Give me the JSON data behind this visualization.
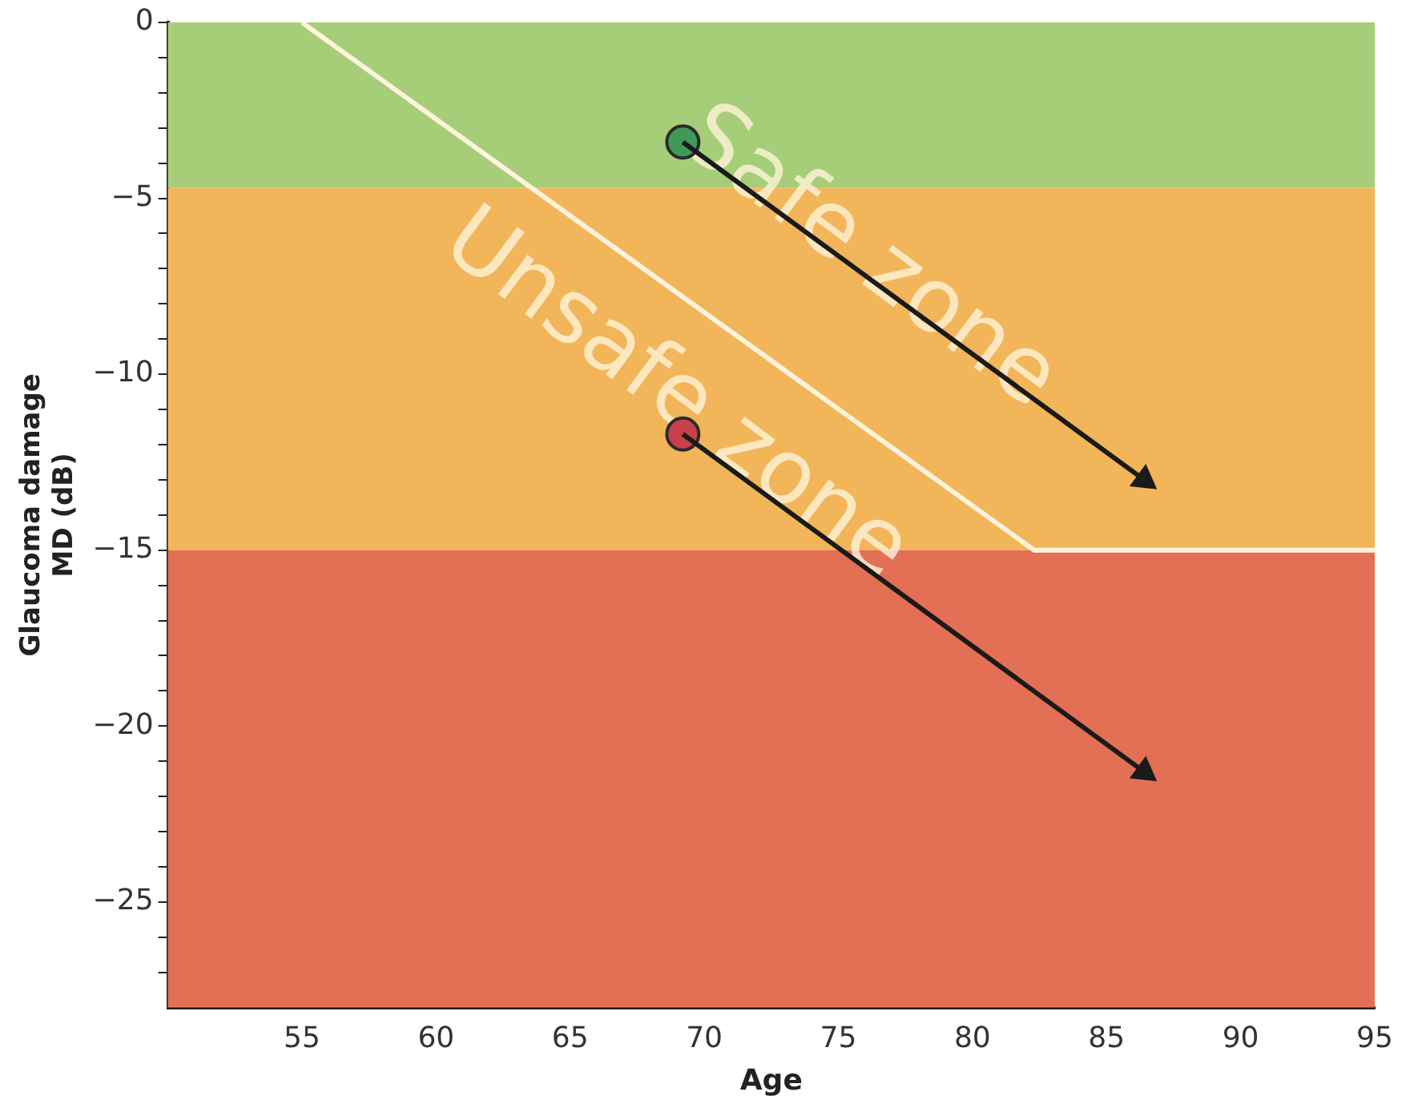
{
  "chart_data": {
    "type": "scatter",
    "xlabel": "Age",
    "ylabel": "Glaucoma damage\nMD (dB)",
    "xlim": [
      50,
      95
    ],
    "xticks": [
      55,
      60,
      65,
      70,
      75,
      80,
      85,
      90,
      95
    ],
    "ylim": [
      -28,
      0
    ],
    "yticks": [
      0,
      {
        "value": -1,
        "label": null
      },
      {
        "value": -2,
        "label": null
      },
      {
        "value": -3,
        "label": null
      },
      {
        "value": -4,
        "label": null
      },
      {
        "value": -5,
        "label": "−5"
      },
      {
        "value": -6,
        "label": null
      },
      {
        "value": -7,
        "label": null
      },
      {
        "value": -8,
        "label": null
      },
      {
        "value": -9,
        "label": null
      },
      {
        "value": -10,
        "label": "−10"
      },
      {
        "value": -11,
        "label": null
      },
      {
        "value": -12,
        "label": null
      },
      {
        "value": -13,
        "label": null
      },
      {
        "value": -14,
        "label": null
      },
      {
        "value": -15,
        "label": "−15"
      },
      {
        "value": -16,
        "label": null
      },
      {
        "value": -17,
        "label": null
      },
      {
        "value": -18,
        "label": null
      },
      {
        "value": -19,
        "label": null
      },
      {
        "value": -20,
        "label": "−20"
      },
      {
        "value": -21,
        "label": null
      },
      {
        "value": -22,
        "label": null
      },
      {
        "value": -23,
        "label": null
      },
      {
        "value": -24,
        "label": null
      },
      {
        "value": -25,
        "label": "−25"
      },
      {
        "value": -26,
        "label": null
      },
      {
        "value": -27,
        "label": null
      }
    ],
    "grid": false,
    "legend": false,
    "bands": [
      {
        "axis": "y",
        "from": 0,
        "to": -4.7,
        "color": "#a6cd78"
      },
      {
        "axis": "y",
        "from": -4.7,
        "to": -15,
        "color": "#f2b55a"
      },
      {
        "axis": "y",
        "from": -15,
        "to": -28,
        "color": "#e36f55"
      }
    ],
    "series": [
      {
        "type": "line",
        "color": "#fdf3dc",
        "x": [
          55,
          82.3,
          95
        ],
        "values": [
          0,
          -15,
          -15
        ],
        "marker": "none"
      },
      {
        "type": "line",
        "color": "#1a1a1a",
        "x": [
          69.2,
          86.4
        ],
        "values": [
          -3.4,
          -13
        ],
        "marker": "triangle"
      },
      {
        "type": "line",
        "color": "#1a1a1a",
        "x": [
          69.2,
          86.4
        ],
        "values": [
          -11.7,
          -21.3
        ],
        "marker": "triangle"
      },
      {
        "color": "#3f9a5a",
        "x": [
          69.2
        ],
        "values": [
          -3.4
        ],
        "marker": "circle"
      },
      {
        "color": "#c8414a",
        "x": [
          69.2
        ],
        "values": [
          -11.7
        ],
        "marker": "circle"
      }
    ],
    "annotations": [
      "Safe zone",
      "Unsafe zone"
    ]
  }
}
